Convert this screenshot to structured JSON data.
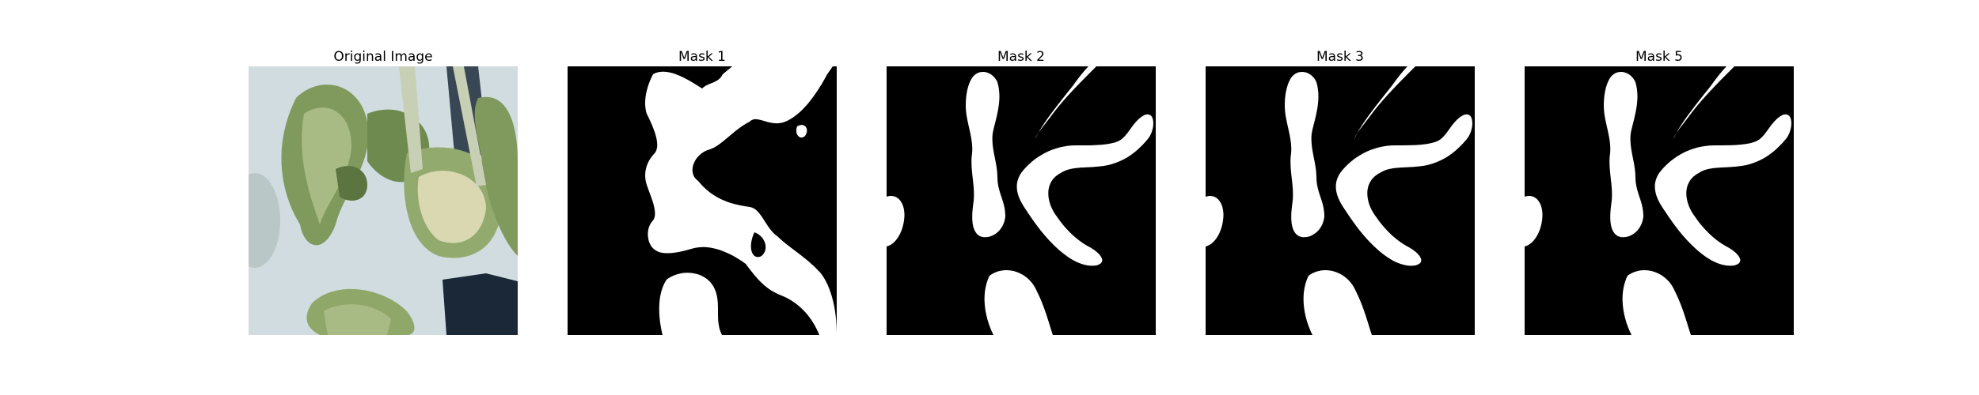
{
  "figure": {
    "panels": [
      {
        "title": "Original Image"
      },
      {
        "title": "Mask 1"
      },
      {
        "title": "Mask 2"
      },
      {
        "title": "Mask 3"
      },
      {
        "title": "Mask 5"
      }
    ]
  },
  "colors": {
    "background": "#ffffff",
    "mask_background": "#000000",
    "mask_foreground": "#ffffff",
    "wall": "#c9d7da",
    "wall_shadow": "#b9c7c6",
    "leaf_light": "#a9bb84",
    "leaf_mid": "#7f9a5c",
    "leaf_dark": "#5b7440",
    "stem": "#c7cfb4",
    "pot": "#1b2838"
  }
}
